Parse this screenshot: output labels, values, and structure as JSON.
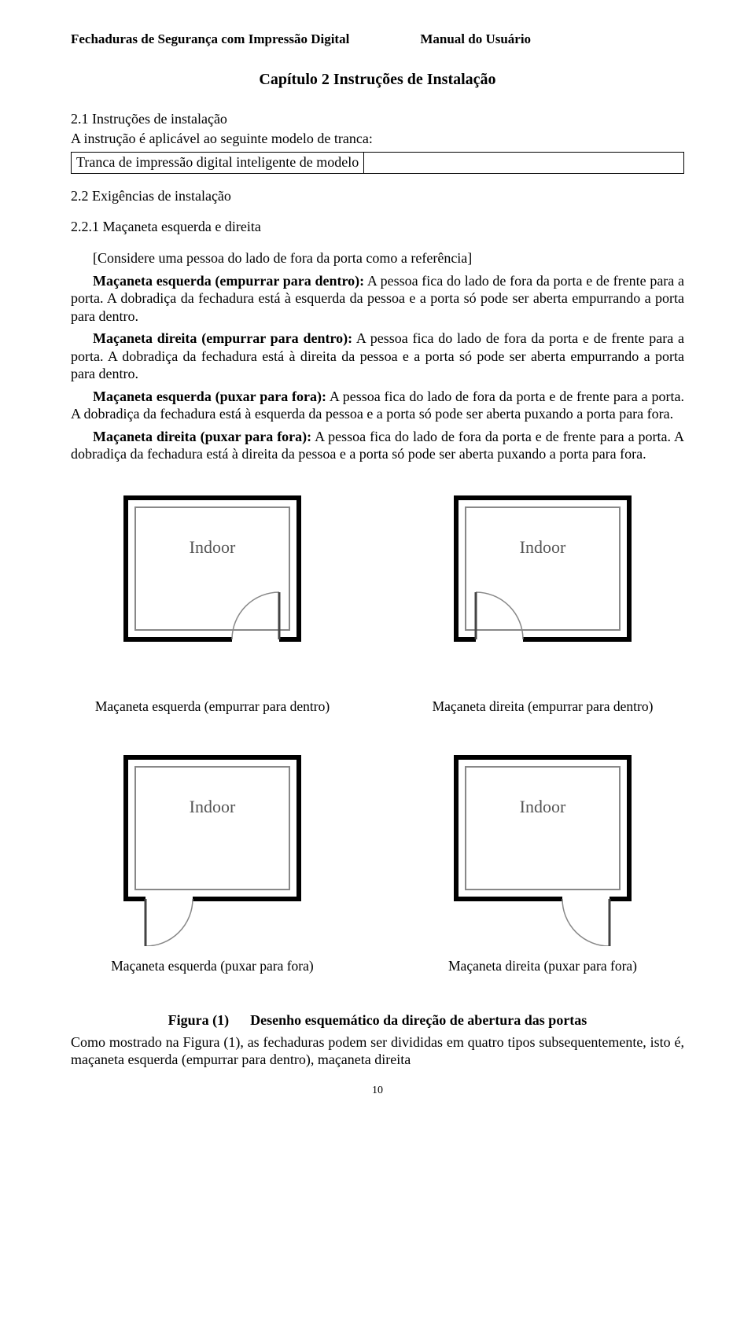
{
  "header": {
    "left": "Fechaduras de Segurança com Impressão Digital",
    "right": "Manual do Usuário"
  },
  "chapter_title": "Capítulo 2 Instruções de Instalação",
  "s21": {
    "heading": "2.1 Instruções de instalação",
    "line1": "A instrução é aplicável ao seguinte modelo de tranca:",
    "model_label": "Tranca de impressão digital inteligente de modelo",
    "model_blank": ""
  },
  "s22": {
    "heading": "2.2 Exigências de instalação"
  },
  "s221": {
    "heading": "2.2.1 Maçaneta esquerda e direita",
    "intro": "[Considere uma pessoa do lado de fora da porta como a referência]",
    "p1_bold": "Maçaneta esquerda (empurrar para dentro):",
    "p1_rest": " A pessoa fica do lado de fora da porta e de frente para a porta. A dobradiça da fechadura está à esquerda da pessoa e a porta só pode ser aberta empurrando a porta para dentro.",
    "p2_bold": "Maçaneta direita (empurrar para dentro):",
    "p2_rest": " A pessoa fica do lado de fora da porta e de frente para a porta. A dobradiça da fechadura está à direita da pessoa e a porta só pode ser aberta empurrando a porta para dentro.",
    "p3_bold": "Maçaneta esquerda (puxar para fora):",
    "p3_rest": " A pessoa fica do lado de fora da porta e de frente para a porta. A dobradiça da fechadura está à esquerda da pessoa e a porta só pode ser aberta puxando a porta para fora.",
    "p4_bold": "Maçaneta direita (puxar para fora):",
    "p4_rest": " A pessoa fica do lado de fora da porta e de frente para a porta. A dobradiça da fechadura está à direita da pessoa e a porta só pode ser aberta puxando a porta para fora."
  },
  "diagram": {
    "room_label": "Indoor",
    "style": {
      "stroke": "#000000",
      "inner_stroke": "#888888",
      "stroke_width_outer": 6,
      "stroke_width_inner": 2,
      "arc_stroke": "#888888",
      "arc_width": 1.5,
      "door_stroke": "#444444",
      "door_width": 3,
      "label_color": "#555555",
      "label_font_size": 22
    },
    "cells": [
      {
        "caption": "Maçaneta esquerda (empurrar para dentro)",
        "door_side": "right",
        "swing": "in"
      },
      {
        "caption": "Maçaneta direita (empurrar para dentro)",
        "door_side": "left",
        "swing": "in"
      },
      {
        "caption": "Maçaneta esquerda (puxar para fora)",
        "door_side": "left",
        "swing": "out"
      },
      {
        "caption": "Maçaneta direita (puxar para fora)",
        "door_side": "right",
        "swing": "out"
      }
    ]
  },
  "figure": {
    "label": "Figura (1)",
    "title": "Desenho esquemático da direção de abertura das portas",
    "followup": "Como mostrado na Figura (1), as fechaduras podem ser divididas em quatro tipos subsequentemente, isto é, maçaneta esquerda (empurrar para dentro), maçaneta direita"
  },
  "page_number": "10"
}
